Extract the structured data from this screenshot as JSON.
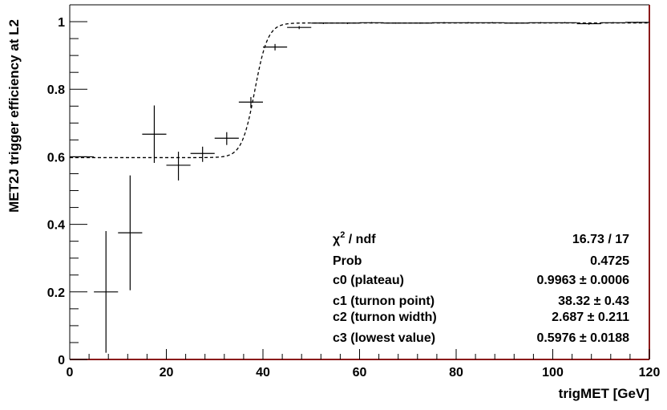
{
  "chart_data": {
    "type": "scatter",
    "xlabel": "trigMET [GeV]",
    "ylabel": "MET2J trigger efficiency at L2",
    "xlim": [
      0,
      120
    ],
    "ylim": [
      0,
      1.05
    ],
    "x_ticks": [
      0,
      20,
      40,
      60,
      80,
      100,
      120
    ],
    "x_tick_labels": [
      "0",
      "20",
      "40",
      "60",
      "80",
      "100",
      "120"
    ],
    "y_ticks": [
      0,
      0.2,
      0.4,
      0.6,
      0.8,
      1
    ],
    "y_tick_labels": [
      "0",
      "0.2",
      "0.4",
      "0.6",
      "0.8",
      "1"
    ],
    "grid": false,
    "points": {
      "x": [
        2.5,
        7.5,
        12.5,
        17.5,
        22.5,
        27.5,
        32.5,
        37.5,
        42.5,
        47.5,
        52.5,
        57.5,
        62.5,
        67.5,
        72.5,
        77.5,
        82.5,
        87.5,
        92.5,
        97.5,
        102.5,
        107.5,
        112.5,
        117.5
      ],
      "x_err": 2.5,
      "y": [
        0.6,
        0.2,
        0.375,
        0.667,
        0.575,
        0.61,
        0.655,
        0.762,
        0.925,
        0.983,
        0.996,
        0.996,
        0.997,
        0.996,
        0.996,
        0.997,
        0.997,
        0.997,
        0.996,
        0.997,
        0.997,
        0.994,
        0.997,
        0.998
      ],
      "y_err_low": [
        0,
        0.18,
        0.17,
        0.085,
        0.045,
        0.025,
        0.02,
        0.017,
        0.01,
        0.005,
        0.003,
        0.003,
        0.002,
        0.002,
        0.002,
        0.002,
        0.002,
        0.002,
        0.002,
        0.002,
        0.002,
        0.003,
        0.002,
        0.002
      ],
      "y_err_high": [
        0,
        0.18,
        0.17,
        0.085,
        0.04,
        0.02,
        0.018,
        0.015,
        0.009,
        0.004,
        0.002,
        0.002,
        0.002,
        0.002,
        0.002,
        0.002,
        0.002,
        0.002,
        0.002,
        0.002,
        0.002,
        0.003,
        0.002,
        0.002
      ]
    },
    "fit": {
      "style": "dashed",
      "plateau": 0.9963,
      "turnon_point": 38.32,
      "turnon_width": 2.687,
      "lowest_value": 0.5976
    },
    "stats_box": {
      "rows": [
        {
          "label_main": "χ",
          "label_sup": "2",
          "label_rest": " / ndf",
          "value": "16.73 / 17"
        },
        {
          "label_main": "Prob",
          "label_sup": "",
          "label_rest": "",
          "value": "0.4725"
        },
        {
          "label_main": "c0 (plateau)",
          "label_sup": "",
          "label_rest": "",
          "value": "0.9963 ± 0.0006"
        },
        {
          "label_main": "c1 (turnon point)",
          "label_sup": "",
          "label_rest": "",
          "value": "38.32 ± 0.43"
        },
        {
          "label_main": "c2 (turnon width)",
          "label_sup": "",
          "label_rest": "",
          "value": "2.687 ± 0.211"
        },
        {
          "label_main": "c3 (lowest value)",
          "label_sup": "",
          "label_rest": "",
          "value": "0.5976 ± 0.0188"
        }
      ]
    },
    "colors": {
      "axis": "#000000",
      "frame_right_bottom": "#8b1a1a",
      "markers": "#000000",
      "fit_line": "#000000"
    }
  }
}
